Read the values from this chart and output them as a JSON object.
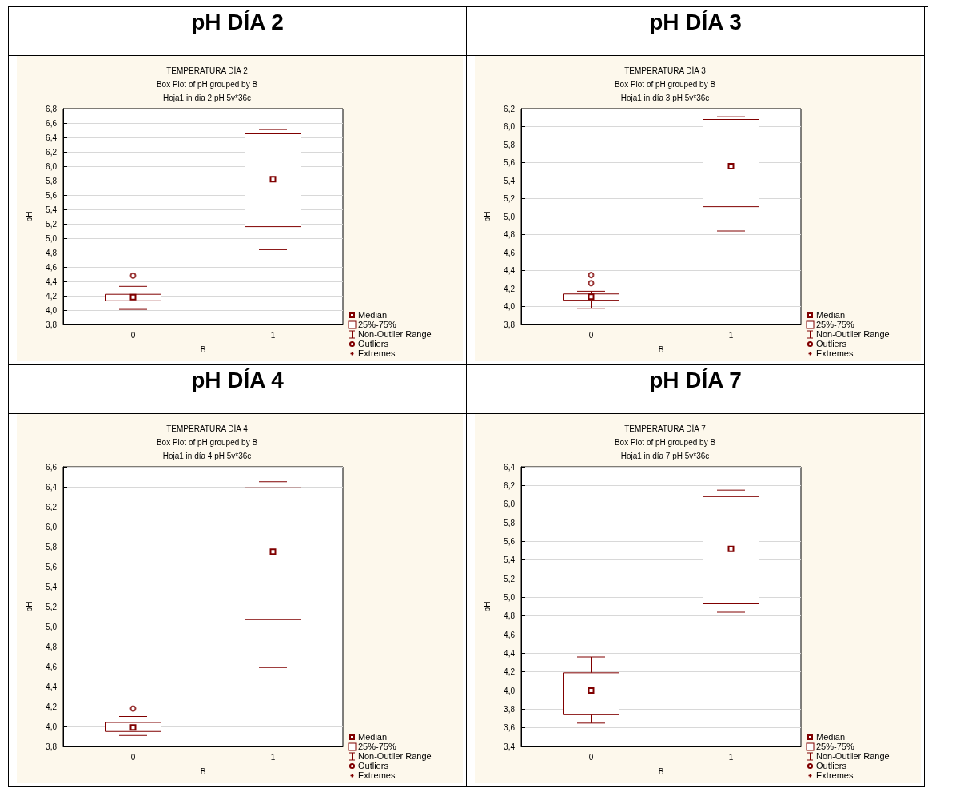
{
  "chart_data": [
    {
      "type": "box",
      "title": "pH DÍA 2",
      "subtitle": "TEMPERATURA DÍA 2",
      "annotations": [
        "Box Plot of pH grouped by B",
        "Hoja1 in dia 2 pH 5v*36c",
        "Median",
        "25%-75%",
        "Non-Outlier Range",
        "Outliers",
        "Extremes"
      ],
      "xlabel": "B",
      "ylabel": "pH",
      "categories": [
        "0",
        "1"
      ],
      "color": "#800000",
      "boxes": [
        {
          "low": 4.01,
          "q1": 4.13,
          "median": 4.18,
          "q3": 4.22,
          "high": 4.33,
          "outliers": [
            4.48
          ]
        },
        {
          "low": 4.84,
          "q1": 5.16,
          "median": 5.82,
          "q3": 6.45,
          "high": 6.51
        }
      ],
      "ylim": [
        3.8,
        6.8
      ],
      "yticks": [
        {
          "value": 3.8,
          "label": "3,8"
        },
        {
          "value": 4.0,
          "label": "4,0"
        },
        {
          "value": 4.2,
          "label": "4,2"
        },
        {
          "value": 4.4,
          "label": "4,4"
        },
        {
          "value": 4.6,
          "label": "4,6"
        },
        {
          "value": 4.8,
          "label": "4,8"
        },
        {
          "value": 5.0,
          "label": "5,0"
        },
        {
          "value": 5.2,
          "label": "5,2"
        },
        {
          "value": 5.4,
          "label": "5,4"
        },
        {
          "value": 5.6,
          "label": "5,6"
        },
        {
          "value": 5.8,
          "label": "5,8"
        },
        {
          "value": 6.0,
          "label": "6,0"
        },
        {
          "value": 6.2,
          "label": "6,2"
        },
        {
          "value": 6.4,
          "label": "6,4"
        },
        {
          "value": 6.6,
          "label": "6,6"
        },
        {
          "value": 6.8,
          "label": "6,8"
        }
      ],
      "grid": "y"
    },
    {
      "type": "box",
      "title": "pH DÍA 3",
      "subtitle": "TEMPERATURA DÍA 3",
      "annotations": [
        "Box Plot of pH grouped by B",
        "Hoja1 in día 3 pH 5v*36c",
        "Median",
        "25%-75%",
        "Non-Outlier Range",
        "Outliers",
        "Extremes"
      ],
      "xlabel": "B",
      "ylabel": "pH",
      "categories": [
        "0",
        "1"
      ],
      "color": "#800000",
      "boxes": [
        {
          "low": 3.98,
          "q1": 4.07,
          "median": 4.11,
          "q3": 4.14,
          "high": 4.17,
          "outliers": [
            4.26,
            4.35
          ]
        },
        {
          "low": 4.84,
          "q1": 5.11,
          "median": 5.56,
          "q3": 6.08,
          "high": 6.11
        }
      ],
      "ylim": [
        3.8,
        6.2
      ],
      "yticks": [
        {
          "value": 3.8,
          "label": "3,8"
        },
        {
          "value": 4.0,
          "label": "4,0"
        },
        {
          "value": 4.2,
          "label": "4,2"
        },
        {
          "value": 4.4,
          "label": "4,4"
        },
        {
          "value": 4.6,
          "label": "4,6"
        },
        {
          "value": 4.8,
          "label": "4,8"
        },
        {
          "value": 5.0,
          "label": "5,0"
        },
        {
          "value": 5.2,
          "label": "5,2"
        },
        {
          "value": 5.4,
          "label": "5,4"
        },
        {
          "value": 5.6,
          "label": "5,6"
        },
        {
          "value": 5.8,
          "label": "5,8"
        },
        {
          "value": 6.0,
          "label": "6,0"
        },
        {
          "value": 6.2,
          "label": "6,2"
        }
      ],
      "grid": "y"
    },
    {
      "type": "box",
      "title": "pH DÍA 4",
      "subtitle": "TEMPERATURA DÍA 4",
      "annotations": [
        "Box Plot of pH grouped by B",
        "Hoja1 in día 4 pH 5v*36c",
        "Median",
        "25%-75%",
        "Non-Outlier Range",
        "Outliers",
        "Extremes"
      ],
      "xlabel": "B",
      "ylabel": "pH",
      "categories": [
        "0",
        "1"
      ],
      "color": "#800000",
      "boxes": [
        {
          "low": 3.91,
          "q1": 3.95,
          "median": 3.99,
          "q3": 4.04,
          "high": 4.1,
          "outliers": [
            4.18
          ]
        },
        {
          "low": 4.59,
          "q1": 5.07,
          "median": 5.75,
          "q3": 6.39,
          "high": 6.45
        }
      ],
      "ylim": [
        3.8,
        6.6
      ],
      "yticks": [
        {
          "value": 3.8,
          "label": "3,8"
        },
        {
          "value": 4.0,
          "label": "4,0"
        },
        {
          "value": 4.2,
          "label": "4,2"
        },
        {
          "value": 4.4,
          "label": "4,4"
        },
        {
          "value": 4.6,
          "label": "4,6"
        },
        {
          "value": 4.8,
          "label": "4,8"
        },
        {
          "value": 5.0,
          "label": "5,0"
        },
        {
          "value": 5.2,
          "label": "5,2"
        },
        {
          "value": 5.4,
          "label": "5,4"
        },
        {
          "value": 5.6,
          "label": "5,6"
        },
        {
          "value": 5.8,
          "label": "5,8"
        },
        {
          "value": 6.0,
          "label": "6,0"
        },
        {
          "value": 6.2,
          "label": "6,2"
        },
        {
          "value": 6.4,
          "label": "6,4"
        },
        {
          "value": 6.6,
          "label": "6,6"
        }
      ],
      "grid": "y"
    },
    {
      "type": "box",
      "title": "pH DÍA 7",
      "subtitle": "TEMPERATURA DÍA 7",
      "annotations": [
        "Box Plot of pH grouped by B",
        "Hoja1 in día 7 pH 5v*36c",
        "Median",
        "25%-75%",
        "Non-Outlier Range",
        "Outliers",
        "Extremes"
      ],
      "xlabel": "B",
      "ylabel": "pH",
      "categories": [
        "0",
        "1"
      ],
      "color": "#800000",
      "boxes": [
        {
          "low": 3.65,
          "q1": 3.74,
          "median": 4.0,
          "q3": 4.19,
          "high": 4.36
        },
        {
          "low": 4.84,
          "q1": 4.93,
          "median": 5.52,
          "q3": 6.08,
          "high": 6.15
        }
      ],
      "ylim": [
        3.4,
        6.4
      ],
      "yticks": [
        {
          "value": 3.4,
          "label": "3,4"
        },
        {
          "value": 3.6,
          "label": "3,6"
        },
        {
          "value": 3.8,
          "label": "3,8"
        },
        {
          "value": 4.0,
          "label": "4,0"
        },
        {
          "value": 4.2,
          "label": "4,2"
        },
        {
          "value": 4.4,
          "label": "4,4"
        },
        {
          "value": 4.6,
          "label": "4,6"
        },
        {
          "value": 4.8,
          "label": "4,8"
        },
        {
          "value": 5.0,
          "label": "5,0"
        },
        {
          "value": 5.2,
          "label": "5,2"
        },
        {
          "value": 5.4,
          "label": "5,4"
        },
        {
          "value": 5.6,
          "label": "5,6"
        },
        {
          "value": 5.8,
          "label": "5,8"
        },
        {
          "value": 6.0,
          "label": "6,0"
        },
        {
          "value": 6.2,
          "label": "6,2"
        },
        {
          "value": 6.4,
          "label": "6,4"
        }
      ],
      "grid": "y"
    }
  ]
}
